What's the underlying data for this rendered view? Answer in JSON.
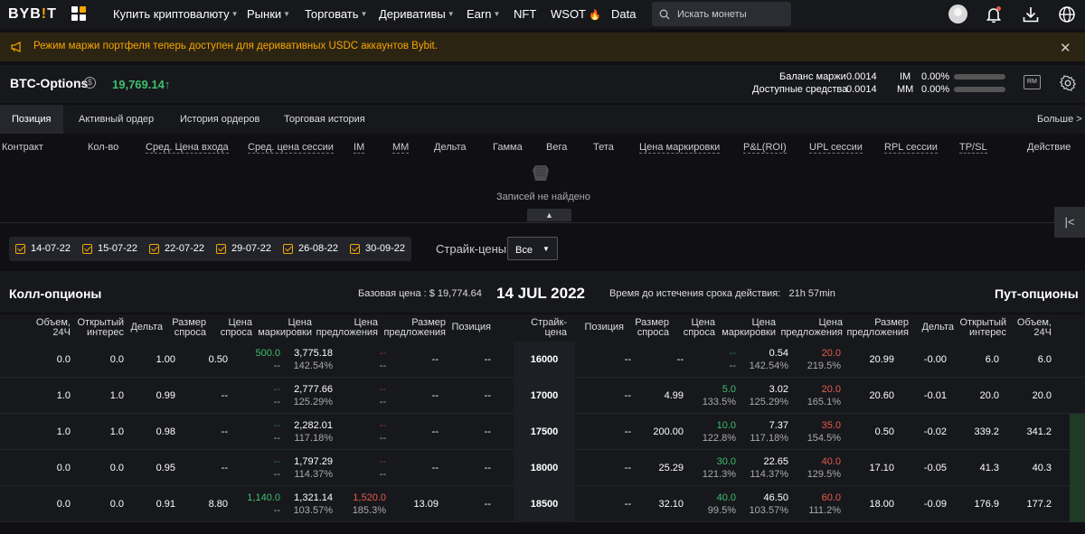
{
  "nav": {
    "logo_a": "BYB",
    "logo_b": "T",
    "items": [
      {
        "label": "Купить криптовалюту",
        "caret": true
      },
      {
        "label": "Рынки",
        "caret": true
      },
      {
        "label": "Торговать",
        "caret": true
      },
      {
        "label": "Деривативы",
        "caret": true
      },
      {
        "label": "Earn",
        "caret": true
      },
      {
        "label": "NFT",
        "caret": false
      },
      {
        "label": "WSOT",
        "caret": false
      },
      {
        "label": "Data",
        "caret": false
      }
    ],
    "search_placeholder": "Искать монеты"
  },
  "banner": {
    "text": "Режим маржи портфеля теперь доступен для деривативных USDC аккаунтов Bybit."
  },
  "header": {
    "instrument": "BTC-Options",
    "price": "19,769.14",
    "price_arrow": "↑",
    "margin_balance_label": "Баланс маржи",
    "margin_balance_value": "0.0014",
    "available_label": "Доступные средства",
    "available_value": "0.0014",
    "im_label": "IM",
    "im_value": "0.00%",
    "mm_label": "MM",
    "mm_value": "0.00%",
    "rm_label": "RM"
  },
  "tabs": {
    "items": [
      "Позиция",
      "Активный ордер",
      "История ордеров",
      "Торговая история"
    ],
    "active": 0,
    "more": "Больше >"
  },
  "positions": {
    "columns": [
      "Контракт",
      "Кол-во",
      "Сред. Цена входа",
      "Сред. цена сессии",
      "IM",
      "MM",
      "Дельта",
      "Гамма",
      "Вега",
      "Тета",
      "Цена маркировки",
      "P&L(ROI)",
      "UPL сессии",
      "RPL сессии",
      "TP/SL",
      "Действие"
    ],
    "empty": "Записей не найдено"
  },
  "filters": {
    "dates": [
      "14-07-22",
      "15-07-22",
      "22-07-22",
      "29-07-22",
      "26-08-22",
      "30-09-22"
    ],
    "strike_label": "Страйк-цены",
    "strike_value": "Все"
  },
  "table": {
    "call_title": "Колл-опционы",
    "put_title": "Пут-опционы",
    "base_price": "Базовая цена : $ 19,774.64",
    "date": "14 JUL 2022",
    "expiry_label": "Время до истечения срока действия:",
    "expiry_value": "21h 57min",
    "call_headers": [
      [
        "Объем,",
        "24Ч"
      ],
      [
        "Открытый",
        "интерес"
      ],
      [
        "Дельта",
        ""
      ],
      [
        "Размер",
        "спроса"
      ],
      [
        "Цена",
        "спроса"
      ],
      [
        "Цена",
        "маркировки"
      ],
      [
        "Цена",
        "предложения"
      ],
      [
        "Размер",
        "предложения"
      ],
      [
        "Позиция",
        ""
      ]
    ],
    "strike_header": [
      "Страйк-",
      "цена"
    ],
    "put_headers": [
      [
        "Позиция",
        ""
      ],
      [
        "Размер",
        "спроса"
      ],
      [
        "Цена",
        "спроса"
      ],
      [
        "Цена",
        "маркировки"
      ],
      [
        "Цена",
        "предложения"
      ],
      [
        "Размер",
        "предложения"
      ],
      [
        "Дельта",
        ""
      ],
      [
        "Открытый",
        "интерес"
      ],
      [
        "Объем,",
        "24Ч"
      ]
    ],
    "rows": [
      {
        "strike": "16000",
        "call": {
          "vol": "0.0",
          "oi": "0.0",
          "delta": "1.00",
          "bid_size": "0.50",
          "bid": "500.0",
          "bid_iv": "--",
          "mark": "3,775.18",
          "mark_iv": "142.54%",
          "ask": "--",
          "ask_iv": "--",
          "ask_size": "--",
          "position": "--"
        },
        "put": {
          "position": "--",
          "bid_size": "--",
          "bid": "--",
          "bid_iv": "--",
          "mark": "0.54",
          "mark_iv": "142.54%",
          "ask": "20.0",
          "ask_iv": "219.5%",
          "ask_size": "20.99",
          "delta": "-0.00",
          "oi": "6.0",
          "vol": "6.0"
        }
      },
      {
        "strike": "17000",
        "call": {
          "vol": "1.0",
          "oi": "1.0",
          "delta": "0.99",
          "bid_size": "--",
          "bid": "--",
          "bid_iv": "--",
          "mark": "2,777.66",
          "mark_iv": "125.29%",
          "ask": "--",
          "ask_iv": "--",
          "ask_size": "--",
          "position": "--"
        },
        "put": {
          "position": "--",
          "bid_size": "4.99",
          "bid": "5.0",
          "bid_iv": "133.5%",
          "mark": "3.02",
          "mark_iv": "125.29%",
          "ask": "20.0",
          "ask_iv": "165.1%",
          "ask_size": "20.60",
          "delta": "-0.01",
          "oi": "20.0",
          "vol": "20.0"
        }
      },
      {
        "strike": "17500",
        "call": {
          "vol": "1.0",
          "oi": "1.0",
          "delta": "0.98",
          "bid_size": "--",
          "bid": "--",
          "bid_iv": "--",
          "mark": "2,282.01",
          "mark_iv": "117.18%",
          "ask": "--",
          "ask_iv": "--",
          "ask_size": "--",
          "position": "--"
        },
        "put": {
          "position": "--",
          "bid_size": "200.00",
          "bid": "10.0",
          "bid_iv": "122.8%",
          "mark": "7.37",
          "mark_iv": "117.18%",
          "ask": "35.0",
          "ask_iv": "154.5%",
          "ask_size": "0.50",
          "delta": "-0.02",
          "oi": "339.2",
          "vol": "341.2"
        }
      },
      {
        "strike": "18000",
        "call": {
          "vol": "0.0",
          "oi": "0.0",
          "delta": "0.95",
          "bid_size": "--",
          "bid": "--",
          "bid_iv": "--",
          "mark": "1,797.29",
          "mark_iv": "114.37%",
          "ask": "--",
          "ask_iv": "--",
          "ask_size": "--",
          "position": "--"
        },
        "put": {
          "position": "--",
          "bid_size": "25.29",
          "bid": "30.0",
          "bid_iv": "121.3%",
          "mark": "22.65",
          "mark_iv": "114.37%",
          "ask": "40.0",
          "ask_iv": "129.5%",
          "ask_size": "17.10",
          "delta": "-0.05",
          "oi": "41.3",
          "vol": "40.3"
        }
      },
      {
        "strike": "18500",
        "call": {
          "vol": "0.0",
          "oi": "0.0",
          "delta": "0.91",
          "bid_size": "8.80",
          "bid": "1,140.0",
          "bid_iv": "--",
          "mark": "1,321.14",
          "mark_iv": "103.57%",
          "ask": "1,520.0",
          "ask_iv": "185.3%",
          "ask_size": "13.09",
          "position": "--"
        },
        "put": {
          "position": "--",
          "bid_size": "32.10",
          "bid": "40.0",
          "bid_iv": "99.5%",
          "mark": "46.50",
          "mark_iv": "103.57%",
          "ask": "60.0",
          "ask_iv": "111.2%",
          "ask_size": "18.00",
          "delta": "-0.09",
          "oi": "176.9",
          "vol": "177.2"
        }
      }
    ]
  }
}
